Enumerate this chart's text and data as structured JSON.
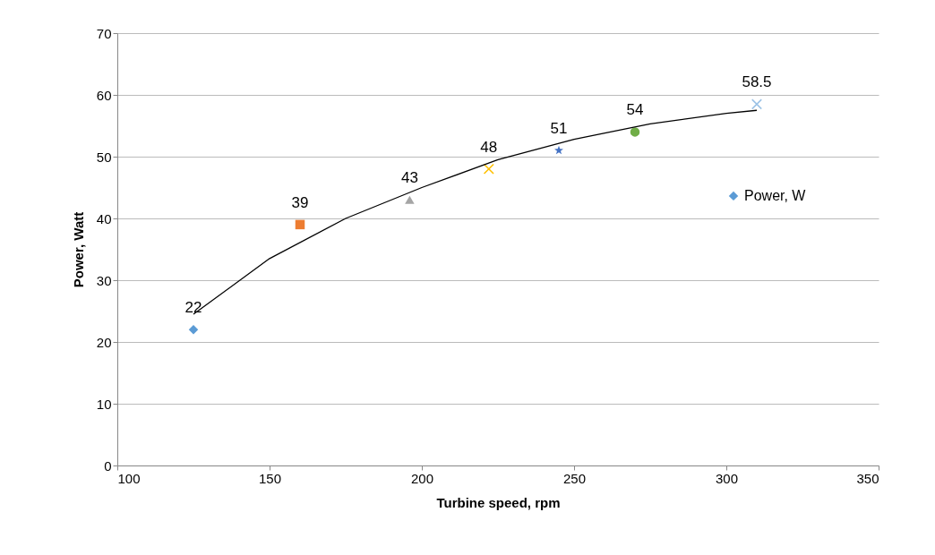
{
  "chart_data": {
    "type": "scatter",
    "xlabel": "Turbine speed, rpm",
    "ylabel": "Power, Watt",
    "xlim": [
      100,
      350
    ],
    "xticks": [
      100,
      150,
      200,
      250,
      300,
      350
    ],
    "ylim": [
      0,
      70
    ],
    "yticks": [
      0,
      10,
      20,
      30,
      40,
      50,
      60,
      70
    ],
    "grid": "y",
    "legend": "right",
    "series": [
      {
        "name": "Power, W",
        "color": "#5b9bd5",
        "marker": "diamond",
        "x": [
          125
        ],
        "values": [
          22
        ],
        "value_labels": [
          "22"
        ]
      },
      {
        "color": "#ed7d31",
        "marker": "square",
        "x": [
          160
        ],
        "values": [
          39
        ],
        "value_labels": [
          "39"
        ]
      },
      {
        "color": "#a5a5a5",
        "marker": "triangle",
        "x": [
          196
        ],
        "values": [
          43
        ],
        "value_labels": [
          "43"
        ]
      },
      {
        "color": "#ffc000",
        "marker": "cross",
        "x": [
          222
        ],
        "values": [
          48
        ],
        "value_labels": [
          "48"
        ]
      },
      {
        "color": "#4472c4",
        "marker": "star",
        "x": [
          245
        ],
        "values": [
          51
        ],
        "value_labels": [
          "51"
        ]
      },
      {
        "color": "#70ad47",
        "marker": "circle",
        "x": [
          270
        ],
        "values": [
          54
        ],
        "value_labels": [
          "54"
        ]
      },
      {
        "color": "#9dc3e6",
        "marker": "cross",
        "x": [
          310
        ],
        "values": [
          58.5
        ],
        "value_labels": [
          "58.5"
        ]
      },
      {
        "type": "line",
        "color": "#000000",
        "x": [
          125,
          150,
          175,
          200,
          225,
          250,
          275,
          300,
          310
        ],
        "values": [
          24.5,
          33.5,
          40,
          45,
          49.5,
          52.8,
          55.3,
          57,
          57.5
        ]
      }
    ]
  }
}
